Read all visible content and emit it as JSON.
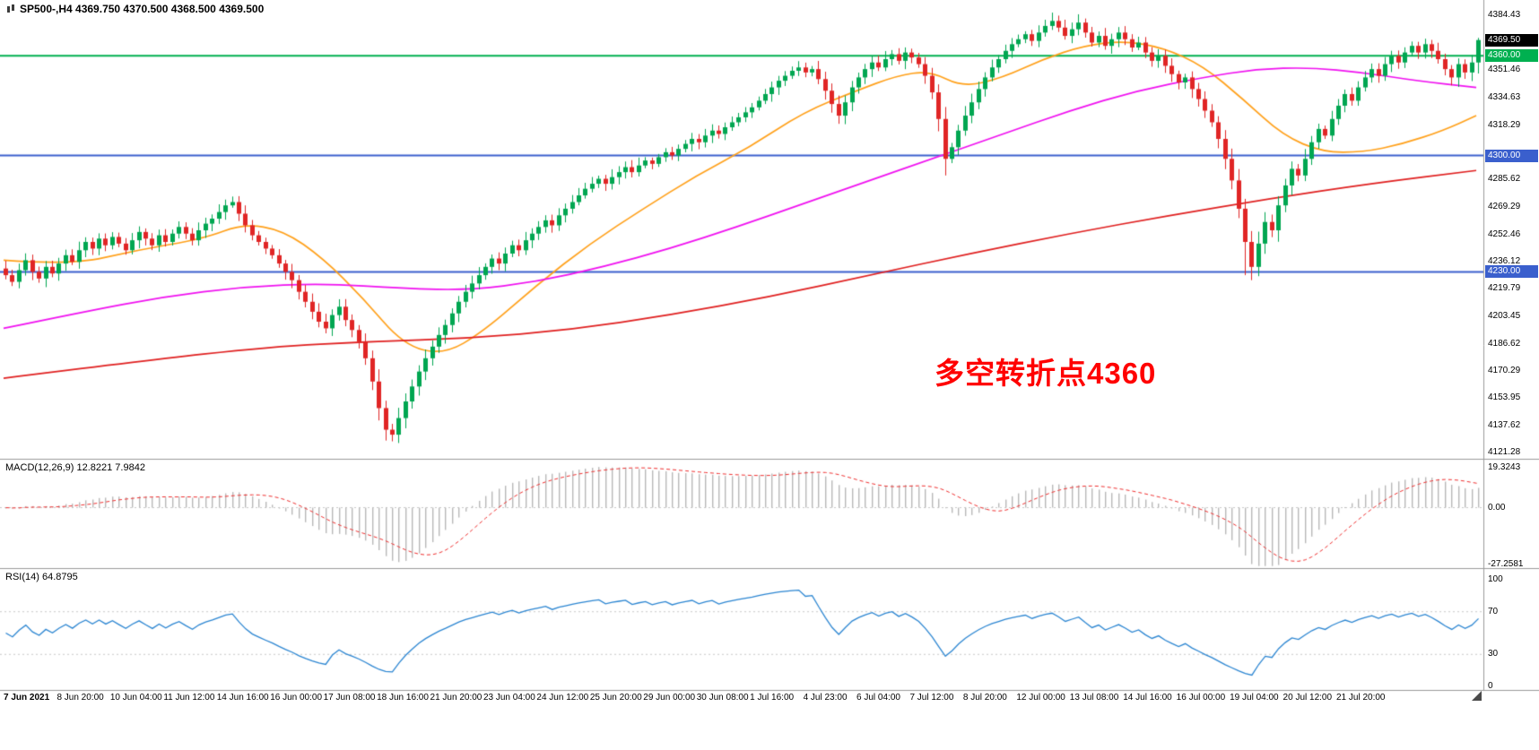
{
  "header": {
    "symbol_title": "SP500-,H4 4369.750 4370.500 4368.500 4369.500"
  },
  "annotation": {
    "text": "多空转折点4360",
    "color": "#FF0000"
  },
  "colors": {
    "background": "#FFFFFF",
    "bull": "#00A651",
    "bear": "#E02525",
    "ma_fast": "#FFA11B",
    "ma_mid": "#F011F0",
    "ma_slow": "#E02020",
    "hline_green": "#00B050",
    "hline_blue": "#3A5FCD",
    "macd_hist": "#B9B9B9",
    "macd_signal": "#F03030",
    "rsi_line": "#2C86D2",
    "level_dotted": "#C9C9C9",
    "separator": "#9A9A9A",
    "current_price_badge": "#000000"
  },
  "price_axis": {
    "ticks": [
      4384.43,
      4351.46,
      4334.63,
      4318.29,
      4285.62,
      4269.29,
      4252.46,
      4236.12,
      4219.79,
      4203.45,
      4186.62,
      4170.29,
      4153.95,
      4137.62,
      4121.28
    ],
    "badges": [
      {
        "label": "4369.50",
        "value": 4369.5,
        "bg": "#000000"
      },
      {
        "label": "4360.00",
        "value": 4360,
        "bg": "#00B050"
      },
      {
        "label": "4300.00",
        "value": 4300,
        "bg": "#3A5FCD"
      },
      {
        "label": "4230.00",
        "value": 4230,
        "bg": "#3A5FCD"
      }
    ]
  },
  "panes": {
    "macd": {
      "label": "MACD(12,26,9) 12.8221 7.9842",
      "ticks": [
        {
          "label": "19.3243",
          "value": 19.3243
        },
        {
          "label": "0.00",
          "value": 0
        },
        {
          "label": "-27.2581",
          "value": -27.2581
        }
      ]
    },
    "rsi": {
      "label": "RSI(14) 64.8795",
      "ticks": [
        {
          "label": "100",
          "value": 100
        },
        {
          "label": "70",
          "value": 70
        },
        {
          "label": "30",
          "value": 30
        },
        {
          "label": "0",
          "value": 0
        }
      ]
    }
  },
  "chart_data": {
    "type": "candlestick",
    "symbol": "SP500-",
    "timeframe": "H4",
    "current_quote": {
      "open": 4369.75,
      "high": 4370.5,
      "low": 4368.5,
      "close": 4369.5
    },
    "y_axis": {
      "min": 4117.5,
      "max": 4393.6
    },
    "bars_per_label": 8,
    "x_labels": [
      "7 Jun 2021",
      "8 Jun 20:00",
      "10 Jun 04:00",
      "11 Jun 12:00",
      "14 Jun 16:00",
      "16 Jun 00:00",
      "17 Jun 08:00",
      "18 Jun 16:00",
      "21 Jun 20:00",
      "23 Jun 04:00",
      "24 Jun 12:00",
      "25 Jun 20:00",
      "29 Jun 00:00",
      "30 Jun 08:00",
      "1 Jul 16:00",
      "4 Jul 23:00",
      "6 Jul 04:00",
      "7 Jul 12:00",
      "8 Jul 20:00",
      "12 Jul 00:00",
      "13 Jul 08:00",
      "14 Jul 16:00",
      "16 Jul 00:00",
      "19 Jul 04:00",
      "20 Jul 12:00",
      "21 Jul 20:00"
    ],
    "open_first": 4232,
    "closes": [
      4228,
      4224,
      4231,
      4237,
      4230,
      4226,
      4233,
      4229,
      4235,
      4240,
      4236,
      4243,
      4248,
      4244,
      4250,
      4246,
      4251,
      4247,
      4243,
      4249,
      4254,
      4250,
      4246,
      4252,
      4248,
      4253,
      4257,
      4253,
      4249,
      4255,
      4259,
      4262,
      4266,
      4270,
      4272,
      4265,
      4258,
      4252,
      4248,
      4244,
      4240,
      4235,
      4230,
      4225,
      4218,
      4212,
      4206,
      4200,
      4196,
      4204,
      4209,
      4201,
      4195,
      4188,
      4178,
      4164,
      4148,
      4135,
      4132,
      4142,
      4152,
      4161,
      4170,
      4178,
      4185,
      4192,
      4198,
      4205,
      4212,
      4218,
      4223,
      4228,
      4233,
      4238,
      4235,
      4241,
      4246,
      4243,
      4249,
      4253,
      4257,
      4261,
      4258,
      4264,
      4268,
      4272,
      4276,
      4280,
      4283,
      4286,
      4283,
      4287,
      4290,
      4293,
      4290,
      4294,
      4297,
      4295,
      4299,
      4302,
      4300,
      4304,
      4307,
      4310,
      4308,
      4312,
      4315,
      4313,
      4317,
      4320,
      4323,
      4326,
      4329,
      4333,
      4337,
      4341,
      4345,
      4348,
      4351,
      4353,
      4350,
      4352,
      4346,
      4339,
      4331,
      4324,
      4332,
      4341,
      4347,
      4352,
      4356,
      4353,
      4358,
      4361,
      4357,
      4362,
      4359,
      4355,
      4348,
      4338,
      4322,
      4298,
      4305,
      4315,
      4324,
      4332,
      4340,
      4347,
      4353,
      4358,
      4363,
      4367,
      4370,
      4373,
      4369,
      4374,
      4378,
      4381,
      4377,
      4372,
      4376,
      4380,
      4374,
      4368,
      4372,
      4366,
      4370,
      4374,
      4370,
      4365,
      4368,
      4362,
      4357,
      4360,
      4354,
      4349,
      4344,
      4347,
      4340,
      4334,
      4327,
      4320,
      4310,
      4298,
      4285,
      4268,
      4248,
      4233,
      4247,
      4260,
      4255,
      4270,
      4282,
      4292,
      4288,
      4298,
      4308,
      4316,
      4312,
      4322,
      4330,
      4337,
      4333,
      4341,
      4347,
      4352,
      4348,
      4355,
      4360,
      4356,
      4362,
      4366,
      4362,
      4367,
      4363,
      4358,
      4352,
      4347,
      4355,
      4350,
      4356,
      4369.5
    ],
    "wick_overrides": {
      "58": {
        "low": 4128
      },
      "141": {
        "low": 4288
      },
      "157": {
        "high": 4386
      },
      "161": {
        "high": 4385
      },
      "186": {
        "low": 4228
      },
      "187": {
        "low": 4225
      },
      "221": {
        "high": 4370.8
      }
    },
    "horizontal_lines": [
      {
        "value": 4360,
        "color": "#00B050",
        "label": "4360.00"
      },
      {
        "value": 4300,
        "color": "#3A5FCD",
        "label": "4300.00"
      },
      {
        "value": 4230,
        "color": "#3A5FCD",
        "label": "4230.00"
      }
    ],
    "overlays": [
      {
        "name": "ma-fast-orange",
        "color": "#FFA11B",
        "points": [
          [
            0,
            4237
          ],
          [
            10,
            4234
          ],
          [
            20,
            4243
          ],
          [
            30,
            4250
          ],
          [
            36,
            4259
          ],
          [
            42,
            4255
          ],
          [
            48,
            4238
          ],
          [
            54,
            4214
          ],
          [
            60,
            4186
          ],
          [
            66,
            4180
          ],
          [
            72,
            4194
          ],
          [
            80,
            4222
          ],
          [
            88,
            4247
          ],
          [
            96,
            4268
          ],
          [
            104,
            4288
          ],
          [
            112,
            4305
          ],
          [
            120,
            4326
          ],
          [
            128,
            4339
          ],
          [
            134,
            4348
          ],
          [
            139,
            4351
          ],
          [
            144,
            4341
          ],
          [
            150,
            4347
          ],
          [
            156,
            4358
          ],
          [
            162,
            4366
          ],
          [
            168,
            4369
          ],
          [
            174,
            4365
          ],
          [
            180,
            4354
          ],
          [
            186,
            4334
          ],
          [
            192,
            4312
          ],
          [
            198,
            4302
          ],
          [
            204,
            4302
          ],
          [
            210,
            4307
          ],
          [
            216,
            4315
          ],
          [
            221,
            4324
          ]
        ]
      },
      {
        "name": "ma-mid-magenta",
        "color": "#F011F0",
        "points": [
          [
            0,
            4196
          ],
          [
            12,
            4206
          ],
          [
            24,
            4215
          ],
          [
            36,
            4221
          ],
          [
            48,
            4223
          ],
          [
            60,
            4220
          ],
          [
            70,
            4219
          ],
          [
            80,
            4224
          ],
          [
            90,
            4233
          ],
          [
            100,
            4244
          ],
          [
            110,
            4257
          ],
          [
            120,
            4271
          ],
          [
            130,
            4285
          ],
          [
            140,
            4299
          ],
          [
            150,
            4313
          ],
          [
            160,
            4327
          ],
          [
            170,
            4339
          ],
          [
            180,
            4347
          ],
          [
            188,
            4352
          ],
          [
            196,
            4353
          ],
          [
            204,
            4350
          ],
          [
            212,
            4345
          ],
          [
            221,
            4341
          ]
        ]
      },
      {
        "name": "ma-slow-red",
        "color": "#E02020",
        "points": [
          [
            0,
            4166
          ],
          [
            20,
            4176
          ],
          [
            40,
            4185
          ],
          [
            55,
            4188
          ],
          [
            70,
            4190
          ],
          [
            85,
            4195
          ],
          [
            100,
            4204
          ],
          [
            115,
            4215
          ],
          [
            130,
            4228
          ],
          [
            145,
            4241
          ],
          [
            160,
            4253
          ],
          [
            175,
            4264
          ],
          [
            190,
            4274
          ],
          [
            205,
            4283
          ],
          [
            221,
            4291
          ]
        ]
      }
    ],
    "indicators": {
      "macd": {
        "params": [
          12,
          26,
          9
        ],
        "main": 12.8221,
        "signal": 7.9842,
        "range": [
          -29,
          23
        ],
        "y_ticks": [
          19.3243,
          0,
          -27.2581
        ]
      },
      "rsi": {
        "period": 14,
        "value": 64.8795,
        "levels": [
          70,
          30
        ],
        "range": [
          0,
          100
        ]
      }
    }
  }
}
